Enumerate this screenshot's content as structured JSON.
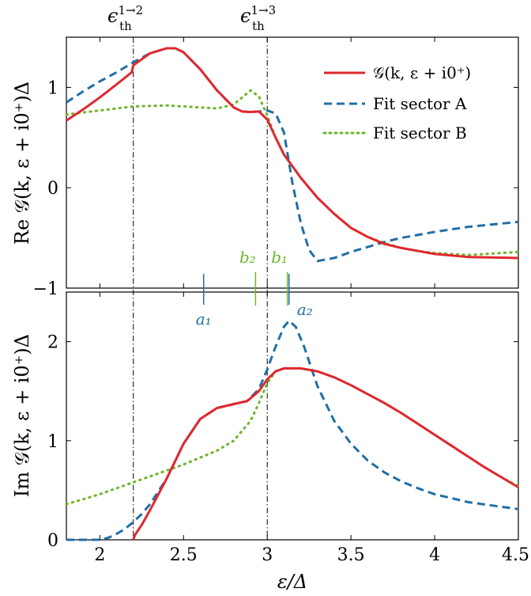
{
  "chart_data": [
    {
      "type": "line",
      "panel": "top",
      "ylabel": "Re 𝒢(k, ε + i0⁺)Δ",
      "xlim": [
        1.8,
        4.5
      ],
      "ylim": [
        -1,
        1.5
      ],
      "yticks": [
        -1,
        0,
        1
      ],
      "ytick_labels": [
        "−1",
        "0",
        "1"
      ],
      "grid": false,
      "legend_position": "top-right",
      "legend": [
        {
          "key": "G",
          "label": "𝒢(k, ε + i0⁺)",
          "color": "#e0282e",
          "dash": "solid"
        },
        {
          "key": "A",
          "label": "Fit sector A",
          "color": "#1f6fa6",
          "dash": "dashed"
        },
        {
          "key": "B",
          "label": "Fit sector B",
          "color": "#6fb52c",
          "dash": "dotted"
        }
      ],
      "series": [
        {
          "key": "G",
          "points": [
            [
              1.8,
              0.67
            ],
            [
              1.9,
              0.78
            ],
            [
              2.0,
              0.9
            ],
            [
              2.1,
              1.03
            ],
            [
              2.19,
              1.15
            ],
            [
              2.2,
              1.22
            ],
            [
              2.3,
              1.34
            ],
            [
              2.4,
              1.39
            ],
            [
              2.45,
              1.39
            ],
            [
              2.5,
              1.35
            ],
            [
              2.6,
              1.18
            ],
            [
              2.7,
              0.97
            ],
            [
              2.8,
              0.8
            ],
            [
              2.85,
              0.76
            ],
            [
              2.9,
              0.755
            ],
            [
              2.95,
              0.76
            ],
            [
              3.0,
              0.68
            ],
            [
              3.05,
              0.5
            ],
            [
              3.1,
              0.33
            ],
            [
              3.2,
              0.1
            ],
            [
              3.3,
              -0.1
            ],
            [
              3.4,
              -0.26
            ],
            [
              3.5,
              -0.4
            ],
            [
              3.6,
              -0.49
            ],
            [
              3.7,
              -0.56
            ],
            [
              3.8,
              -0.6
            ],
            [
              3.9,
              -0.63
            ],
            [
              4.0,
              -0.66
            ],
            [
              4.2,
              -0.69
            ],
            [
              4.5,
              -0.7
            ]
          ]
        },
        {
          "key": "A",
          "points": [
            [
              1.8,
              0.85
            ],
            [
              1.9,
              0.96
            ],
            [
              2.0,
              1.06
            ],
            [
              2.1,
              1.15
            ],
            [
              2.2,
              1.25
            ],
            [
              2.3,
              1.34
            ],
            [
              2.4,
              1.39
            ],
            [
              2.45,
              1.39
            ],
            [
              2.5,
              1.35
            ],
            [
              2.6,
              1.18
            ],
            [
              2.7,
              0.97
            ],
            [
              2.8,
              0.8
            ],
            [
              2.85,
              0.76
            ],
            [
              2.9,
              0.755
            ],
            [
              2.95,
              0.76
            ],
            [
              3.0,
              0.77
            ],
            [
              3.05,
              0.74
            ],
            [
              3.1,
              0.55
            ],
            [
              3.15,
              0.05
            ],
            [
              3.2,
              -0.35
            ],
            [
              3.25,
              -0.62
            ],
            [
              3.3,
              -0.73
            ],
            [
              3.4,
              -0.7
            ],
            [
              3.5,
              -0.64
            ],
            [
              3.6,
              -0.59
            ],
            [
              3.7,
              -0.54
            ],
            [
              3.8,
              -0.5
            ],
            [
              4.0,
              -0.44
            ],
            [
              4.2,
              -0.39
            ],
            [
              4.5,
              -0.34
            ]
          ]
        },
        {
          "key": "B",
          "points": [
            [
              1.8,
              0.73
            ],
            [
              2.0,
              0.77
            ],
            [
              2.2,
              0.81
            ],
            [
              2.4,
              0.82
            ],
            [
              2.6,
              0.8
            ],
            [
              2.7,
              0.79
            ],
            [
              2.8,
              0.83
            ],
            [
              2.85,
              0.9
            ],
            [
              2.9,
              0.97
            ],
            [
              2.95,
              0.91
            ],
            [
              3.0,
              0.72
            ],
            [
              3.05,
              0.5
            ],
            [
              3.1,
              0.33
            ],
            [
              3.2,
              0.1
            ],
            [
              3.3,
              -0.1
            ],
            [
              3.4,
              -0.26
            ],
            [
              3.5,
              -0.4
            ],
            [
              3.6,
              -0.49
            ],
            [
              3.7,
              -0.55
            ],
            [
              3.8,
              -0.6
            ],
            [
              3.9,
              -0.63
            ],
            [
              4.0,
              -0.65
            ],
            [
              4.2,
              -0.67
            ],
            [
              4.5,
              -0.64
            ]
          ]
        }
      ],
      "vlines": [
        {
          "x": 2.2,
          "label": "ε_th^{1→2}"
        },
        {
          "x": 3.0,
          "label": "ε_th^{1→3}"
        }
      ],
      "annotations": [
        {
          "name": "b2",
          "label": "b₂",
          "x": 2.93,
          "color": "#6fb52c"
        },
        {
          "name": "b1",
          "label": "b₁",
          "x": 3.12,
          "color": "#6fb52c"
        }
      ]
    },
    {
      "type": "line",
      "panel": "bottom",
      "ylabel": "Im 𝒢(k, ε + i0⁺)Δ",
      "xlabel": "ε/Δ",
      "xlim": [
        1.8,
        4.5
      ],
      "ylim": [
        0,
        2.5
      ],
      "yticks": [
        0,
        1,
        2
      ],
      "ytick_labels": [
        "0",
        "1",
        "2"
      ],
      "xticks": [
        2,
        2.5,
        3,
        3.5,
        4,
        4.5
      ],
      "xtick_labels": [
        "2",
        "2.5",
        "3",
        "3.5",
        "4",
        "4.5"
      ],
      "grid": false,
      "series": [
        {
          "key": "G",
          "points": [
            [
              2.2,
              0.0
            ],
            [
              2.21,
              0.05
            ],
            [
              2.25,
              0.15
            ],
            [
              2.3,
              0.3
            ],
            [
              2.4,
              0.62
            ],
            [
              2.5,
              0.97
            ],
            [
              2.6,
              1.22
            ],
            [
              2.7,
              1.33
            ],
            [
              2.8,
              1.37
            ],
            [
              2.88,
              1.4
            ],
            [
              2.95,
              1.5
            ],
            [
              3.0,
              1.62
            ],
            [
              3.05,
              1.7
            ],
            [
              3.1,
              1.73
            ],
            [
              3.2,
              1.73
            ],
            [
              3.3,
              1.7
            ],
            [
              3.4,
              1.64
            ],
            [
              3.5,
              1.56
            ],
            [
              3.6,
              1.47
            ],
            [
              3.7,
              1.38
            ],
            [
              3.8,
              1.28
            ],
            [
              3.9,
              1.17
            ],
            [
              4.0,
              1.06
            ],
            [
              4.1,
              0.95
            ],
            [
              4.2,
              0.84
            ],
            [
              4.3,
              0.73
            ],
            [
              4.4,
              0.63
            ],
            [
              4.5,
              0.53
            ]
          ]
        },
        {
          "key": "A",
          "points": [
            [
              1.8,
              0.0
            ],
            [
              2.0,
              0.0
            ],
            [
              2.05,
              0.02
            ],
            [
              2.1,
              0.06
            ],
            [
              2.15,
              0.11
            ],
            [
              2.2,
              0.18
            ],
            [
              2.25,
              0.26
            ],
            [
              2.3,
              0.36
            ],
            [
              2.4,
              0.62
            ],
            [
              2.5,
              0.97
            ],
            [
              2.6,
              1.22
            ],
            [
              2.7,
              1.33
            ],
            [
              2.8,
              1.37
            ],
            [
              2.88,
              1.4
            ],
            [
              2.95,
              1.52
            ],
            [
              3.0,
              1.72
            ],
            [
              3.05,
              1.95
            ],
            [
              3.1,
              2.15
            ],
            [
              3.13,
              2.21
            ],
            [
              3.17,
              2.15
            ],
            [
              3.22,
              1.95
            ],
            [
              3.3,
              1.55
            ],
            [
              3.4,
              1.2
            ],
            [
              3.5,
              0.97
            ],
            [
              3.6,
              0.8
            ],
            [
              3.7,
              0.68
            ],
            [
              3.8,
              0.59
            ],
            [
              3.9,
              0.52
            ],
            [
              4.0,
              0.46
            ],
            [
              4.2,
              0.38
            ],
            [
              4.5,
              0.31
            ]
          ]
        },
        {
          "key": "B",
          "points": [
            [
              1.8,
              0.36
            ],
            [
              1.9,
              0.41
            ],
            [
              2.0,
              0.46
            ],
            [
              2.1,
              0.52
            ],
            [
              2.2,
              0.58
            ],
            [
              2.3,
              0.64
            ],
            [
              2.4,
              0.7
            ],
            [
              2.5,
              0.76
            ],
            [
              2.6,
              0.83
            ],
            [
              2.7,
              0.9
            ],
            [
              2.8,
              1.0
            ],
            [
              2.9,
              1.2
            ],
            [
              2.95,
              1.38
            ],
            [
              3.0,
              1.58
            ],
            [
              3.05,
              1.7
            ],
            [
              3.1,
              1.73
            ],
            [
              3.2,
              1.73
            ],
            [
              3.3,
              1.7
            ],
            [
              3.4,
              1.64
            ],
            [
              3.5,
              1.56
            ],
            [
              3.6,
              1.47
            ],
            [
              3.7,
              1.38
            ],
            [
              3.8,
              1.28
            ],
            [
              3.9,
              1.17
            ],
            [
              4.0,
              1.06
            ],
            [
              4.1,
              0.95
            ],
            [
              4.2,
              0.84
            ],
            [
              4.3,
              0.73
            ],
            [
              4.4,
              0.63
            ],
            [
              4.5,
              0.54
            ]
          ]
        }
      ],
      "vlines": [
        {
          "x": 2.2
        },
        {
          "x": 3.0
        }
      ],
      "annotations": [
        {
          "name": "a1",
          "label": "a₁",
          "x": 2.62,
          "color": "#1f6fa6"
        },
        {
          "name": "a2",
          "label": "a₂",
          "x": 3.13,
          "color": "#1f6fa6"
        }
      ]
    }
  ],
  "labels": {
    "threshold_12_base": "ϵ",
    "threshold_12_sup": "1→2",
    "threshold_12_sub": "th",
    "threshold_13_base": "ϵ",
    "threshold_13_sup": "1→3",
    "threshold_13_sub": "th"
  }
}
